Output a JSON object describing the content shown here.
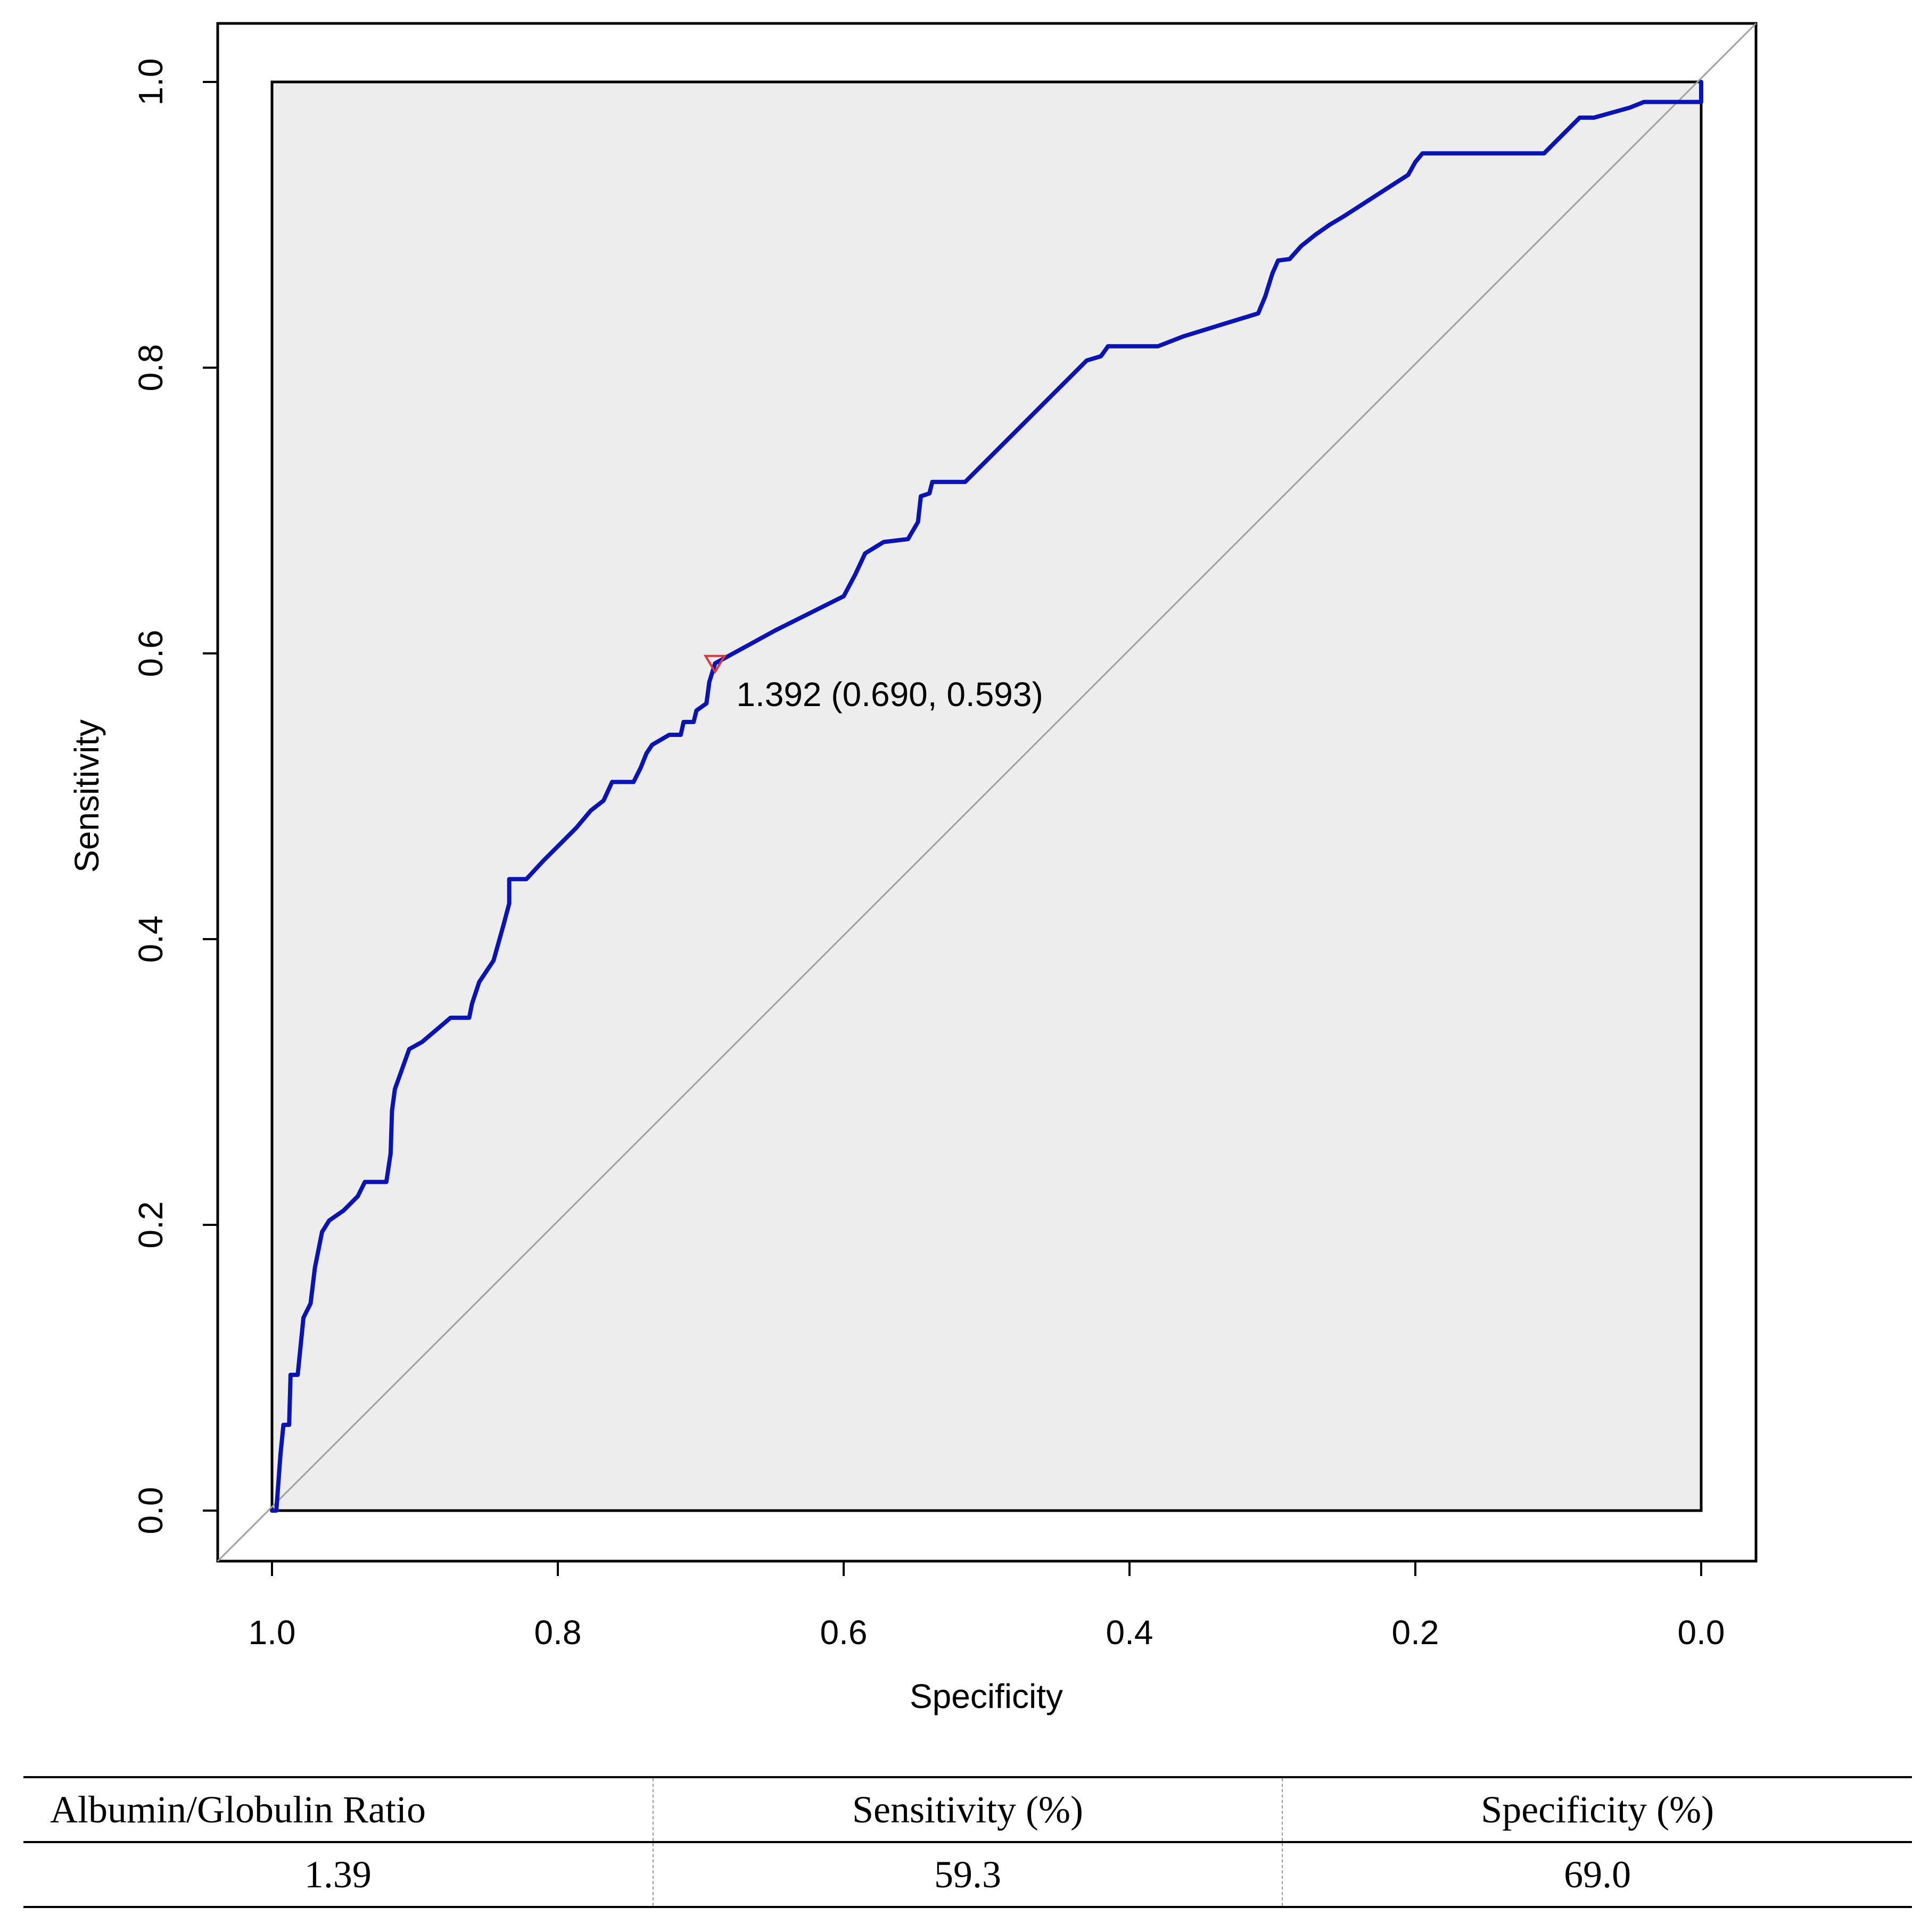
{
  "chart_data": {
    "type": "line",
    "title": "",
    "xlabel": "Specificity",
    "ylabel": "Sensitivity",
    "x_reversed": true,
    "xlim": [
      1.0,
      0.0
    ],
    "ylim": [
      0.0,
      1.0
    ],
    "x_ticks": [
      "1.0",
      "0.8",
      "0.6",
      "0.4",
      "0.2",
      "0.0"
    ],
    "y_ticks": [
      "0.0",
      "0.2",
      "0.4",
      "0.6",
      "0.8",
      "1.0"
    ],
    "grid": false,
    "reference_line": "diagonal",
    "series": [
      {
        "name": "ROC curve",
        "color": "#0a14b4",
        "points": [
          [
            1.0,
            0.0
          ],
          [
            0.997,
            0.0
          ],
          [
            0.996,
            0.013
          ],
          [
            0.994,
            0.04
          ],
          [
            0.992,
            0.06
          ],
          [
            0.988,
            0.06
          ],
          [
            0.987,
            0.095
          ],
          [
            0.982,
            0.095
          ],
          [
            0.98,
            0.115
          ],
          [
            0.978,
            0.135
          ],
          [
            0.973,
            0.145
          ],
          [
            0.97,
            0.17
          ],
          [
            0.965,
            0.195
          ],
          [
            0.96,
            0.203
          ],
          [
            0.95,
            0.21
          ],
          [
            0.94,
            0.22
          ],
          [
            0.935,
            0.23
          ],
          [
            0.92,
            0.23
          ],
          [
            0.917,
            0.25
          ],
          [
            0.916,
            0.28
          ],
          [
            0.914,
            0.295
          ],
          [
            0.904,
            0.323
          ],
          [
            0.895,
            0.328
          ],
          [
            0.875,
            0.345
          ],
          [
            0.862,
            0.345
          ],
          [
            0.86,
            0.355
          ],
          [
            0.855,
            0.37
          ],
          [
            0.845,
            0.385
          ],
          [
            0.838,
            0.41
          ],
          [
            0.834,
            0.425
          ],
          [
            0.834,
            0.442
          ],
          [
            0.822,
            0.442
          ],
          [
            0.81,
            0.455
          ],
          [
            0.797,
            0.468
          ],
          [
            0.787,
            0.478
          ],
          [
            0.777,
            0.49
          ],
          [
            0.768,
            0.497
          ],
          [
            0.762,
            0.51
          ],
          [
            0.747,
            0.51
          ],
          [
            0.742,
            0.52
          ],
          [
            0.738,
            0.53
          ],
          [
            0.734,
            0.536
          ],
          [
            0.722,
            0.543
          ],
          [
            0.714,
            0.543
          ],
          [
            0.712,
            0.552
          ],
          [
            0.705,
            0.552
          ],
          [
            0.703,
            0.56
          ],
          [
            0.696,
            0.565
          ],
          [
            0.694,
            0.58
          ],
          [
            0.69,
            0.593
          ],
          [
            0.648,
            0.616
          ],
          [
            0.6,
            0.64
          ],
          [
            0.592,
            0.655
          ],
          [
            0.585,
            0.67
          ],
          [
            0.572,
            0.678
          ],
          [
            0.555,
            0.68
          ],
          [
            0.548,
            0.692
          ],
          [
            0.546,
            0.71
          ],
          [
            0.54,
            0.712
          ],
          [
            0.538,
            0.72
          ],
          [
            0.515,
            0.72
          ],
          [
            0.43,
            0.805
          ],
          [
            0.42,
            0.808
          ],
          [
            0.415,
            0.815
          ],
          [
            0.38,
            0.815
          ],
          [
            0.362,
            0.822
          ],
          [
            0.31,
            0.838
          ],
          [
            0.305,
            0.85
          ],
          [
            0.3,
            0.866
          ],
          [
            0.296,
            0.875
          ],
          [
            0.288,
            0.876
          ],
          [
            0.28,
            0.885
          ],
          [
            0.27,
            0.893
          ],
          [
            0.26,
            0.9
          ],
          [
            0.25,
            0.906
          ],
          [
            0.205,
            0.935
          ],
          [
            0.2,
            0.944
          ],
          [
            0.195,
            0.95
          ],
          [
            0.11,
            0.95
          ],
          [
            0.095,
            0.965
          ],
          [
            0.085,
            0.975
          ],
          [
            0.075,
            0.975
          ],
          [
            0.05,
            0.982
          ],
          [
            0.04,
            0.986
          ],
          [
            0.0,
            0.986
          ],
          [
            0.0,
            1.0
          ]
        ]
      }
    ],
    "annotation": {
      "specificity": 0.69,
      "sensitivity": 0.593,
      "label": "1.392 (0.690, 0.593)",
      "color": "#e0343c"
    }
  },
  "table": {
    "headers": [
      "Albumin/Globulin Ratio",
      "Sensitivity (%)",
      "Specificity (%)"
    ],
    "rows": [
      [
        "1.39",
        "59.3",
        "69.0"
      ]
    ]
  }
}
